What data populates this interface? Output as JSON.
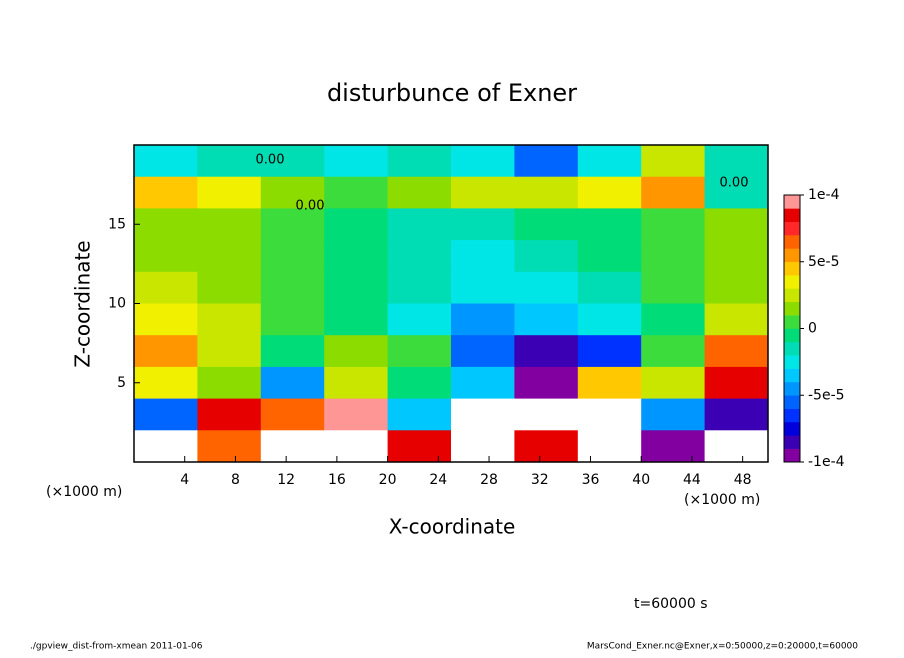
{
  "chart_data": {
    "type": "contour",
    "title": "disturbunce of Exner",
    "xlabel": "X-coordinate",
    "ylabel": "Z-coordinate",
    "x_unit": "(×1000 m)",
    "annotation": "t=60000 s",
    "footer_left": "./gpview_dist-from-xmean  2011-01-06",
    "footer_right": "MarsCond_Exner.nc@Exner,x=0:50000,z=0:20000,t=60000",
    "contour_labels": [
      "0.00",
      "0.00",
      "0.00"
    ],
    "xlim": [
      0,
      50
    ],
    "ylim": [
      0,
      20
    ],
    "xticks": [
      4,
      8,
      12,
      16,
      20,
      24,
      28,
      32,
      36,
      40,
      44,
      48
    ],
    "yticks": [
      5,
      10,
      15
    ],
    "x": [
      2.5,
      7.5,
      12.5,
      17.5,
      22.5,
      27.5,
      32.5,
      37.5,
      42.5,
      47.5
    ],
    "y": [
      19,
      17,
      15,
      13,
      11,
      9,
      7,
      5,
      3,
      1
    ],
    "z": [
      [
        -3e-05,
        -2e-05,
        -2e-05,
        -3e-05,
        -2e-05,
        -3e-05,
        -6e-05,
        -3e-05,
        2e-05,
        -2e-05
      ],
      [
        4e-05,
        3e-05,
        1e-05,
        0,
        1e-05,
        2e-05,
        2e-05,
        3e-05,
        5e-05,
        -2e-05
      ],
      [
        1e-05,
        1e-05,
        0,
        -1e-05,
        -2e-05,
        -2e-05,
        -1e-05,
        -1e-05,
        0,
        1e-05
      ],
      [
        1e-05,
        1e-05,
        0,
        -1e-05,
        -2e-05,
        -3e-05,
        -2e-05,
        -1e-05,
        0,
        1e-05
      ],
      [
        2e-05,
        1e-05,
        0,
        -1e-05,
        -2e-05,
        -3e-05,
        -3e-05,
        -2e-05,
        0,
        1e-05
      ],
      [
        3e-05,
        2e-05,
        0,
        -1e-05,
        -3e-05,
        -5e-05,
        -4e-05,
        -3e-05,
        -1e-05,
        2e-05
      ],
      [
        5e-05,
        2e-05,
        -1e-05,
        1e-05,
        0,
        -6e-05,
        -8e-05,
        -7e-05,
        0,
        6e-05
      ],
      [
        3e-05,
        1e-05,
        -5e-05,
        2e-05,
        -1e-05,
        -4e-05,
        -9e-05,
        4e-05,
        2e-05,
        8e-05
      ],
      [
        -6e-05,
        8e-05,
        6e-05,
        9e-05,
        -4e-05,
        0.00012,
        0.00012,
        0.00012,
        -5e-05,
        -8e-05
      ],
      [
        -0.00012,
        6e-05,
        0.00011,
        0.00011,
        8e-05,
        0.00012,
        8e-05,
        0.00011,
        -0.0001,
        -0.00012
      ]
    ],
    "clim": [
      -0.0001,
      0.0001
    ],
    "cticks": [
      {
        "value": 0.0001,
        "label": "1e-4"
      },
      {
        "value": 5e-05,
        "label": "5e-5"
      },
      {
        "value": 0,
        "label": "0"
      },
      {
        "value": -5e-05,
        "label": "-5e-5"
      },
      {
        "value": -0.0001,
        "label": "-1e-4"
      }
    ],
    "colors": [
      "#8200a0",
      "#3c00b4",
      "#0000dc",
      "#0032ff",
      "#0064ff",
      "#0096ff",
      "#00c8ff",
      "#00e6e6",
      "#00dcb4",
      "#00dc78",
      "#3cdc3c",
      "#8cdc00",
      "#c8e600",
      "#f0f000",
      "#ffc800",
      "#ff9600",
      "#ff6400",
      "#ff2828",
      "#e60000",
      "#ff9696"
    ],
    "out_of_range_color": "#ffffff"
  }
}
